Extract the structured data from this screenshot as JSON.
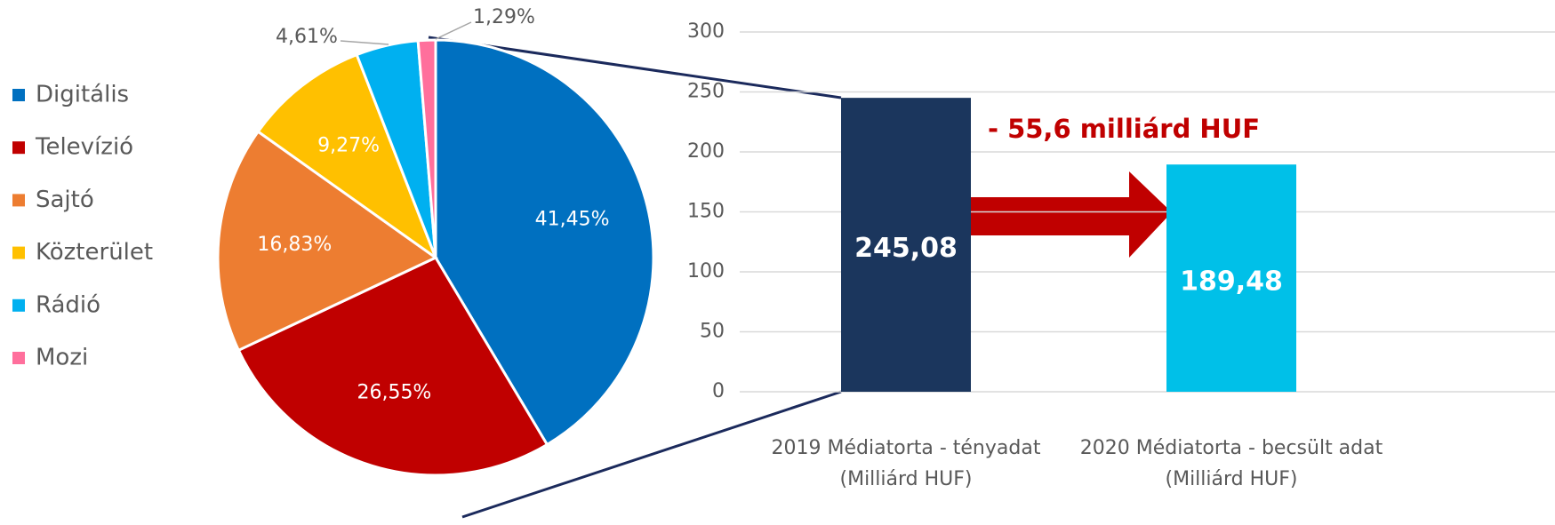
{
  "chart_data": [
    {
      "type": "pie",
      "categories": [
        "Digitális",
        "Televízió",
        "Sajtó",
        "Közterület",
        "Rádió",
        "Mozi"
      ],
      "values": [
        41.45,
        26.55,
        16.83,
        9.27,
        4.61,
        1.29
      ],
      "value_labels": [
        "41,45%",
        "26,55%",
        "16,83%",
        "9,27%",
        "4,61%",
        "1,29%"
      ],
      "colors": [
        "#0070c0",
        "#c00000",
        "#ed7d31",
        "#ffc000",
        "#00b0f0",
        "#ff6f9c"
      ],
      "legend": "left"
    },
    {
      "type": "bar",
      "categories": [
        "2019 Médiatorta - tényadat\n(Milliárd HUF)",
        "2020 Médiatorta - becsült adat\n(Milliárd HUF)"
      ],
      "values": [
        245.08,
        189.48
      ],
      "value_labels": [
        "245,08",
        "189,48"
      ],
      "colors": [
        "#1b365d",
        "#00c0e8"
      ],
      "ylim": [
        0,
        300
      ],
      "yticks": [
        0,
        50,
        100,
        150,
        200,
        250,
        300
      ],
      "grid": true,
      "annotation": "- 55,6 milliárd HUF"
    }
  ]
}
